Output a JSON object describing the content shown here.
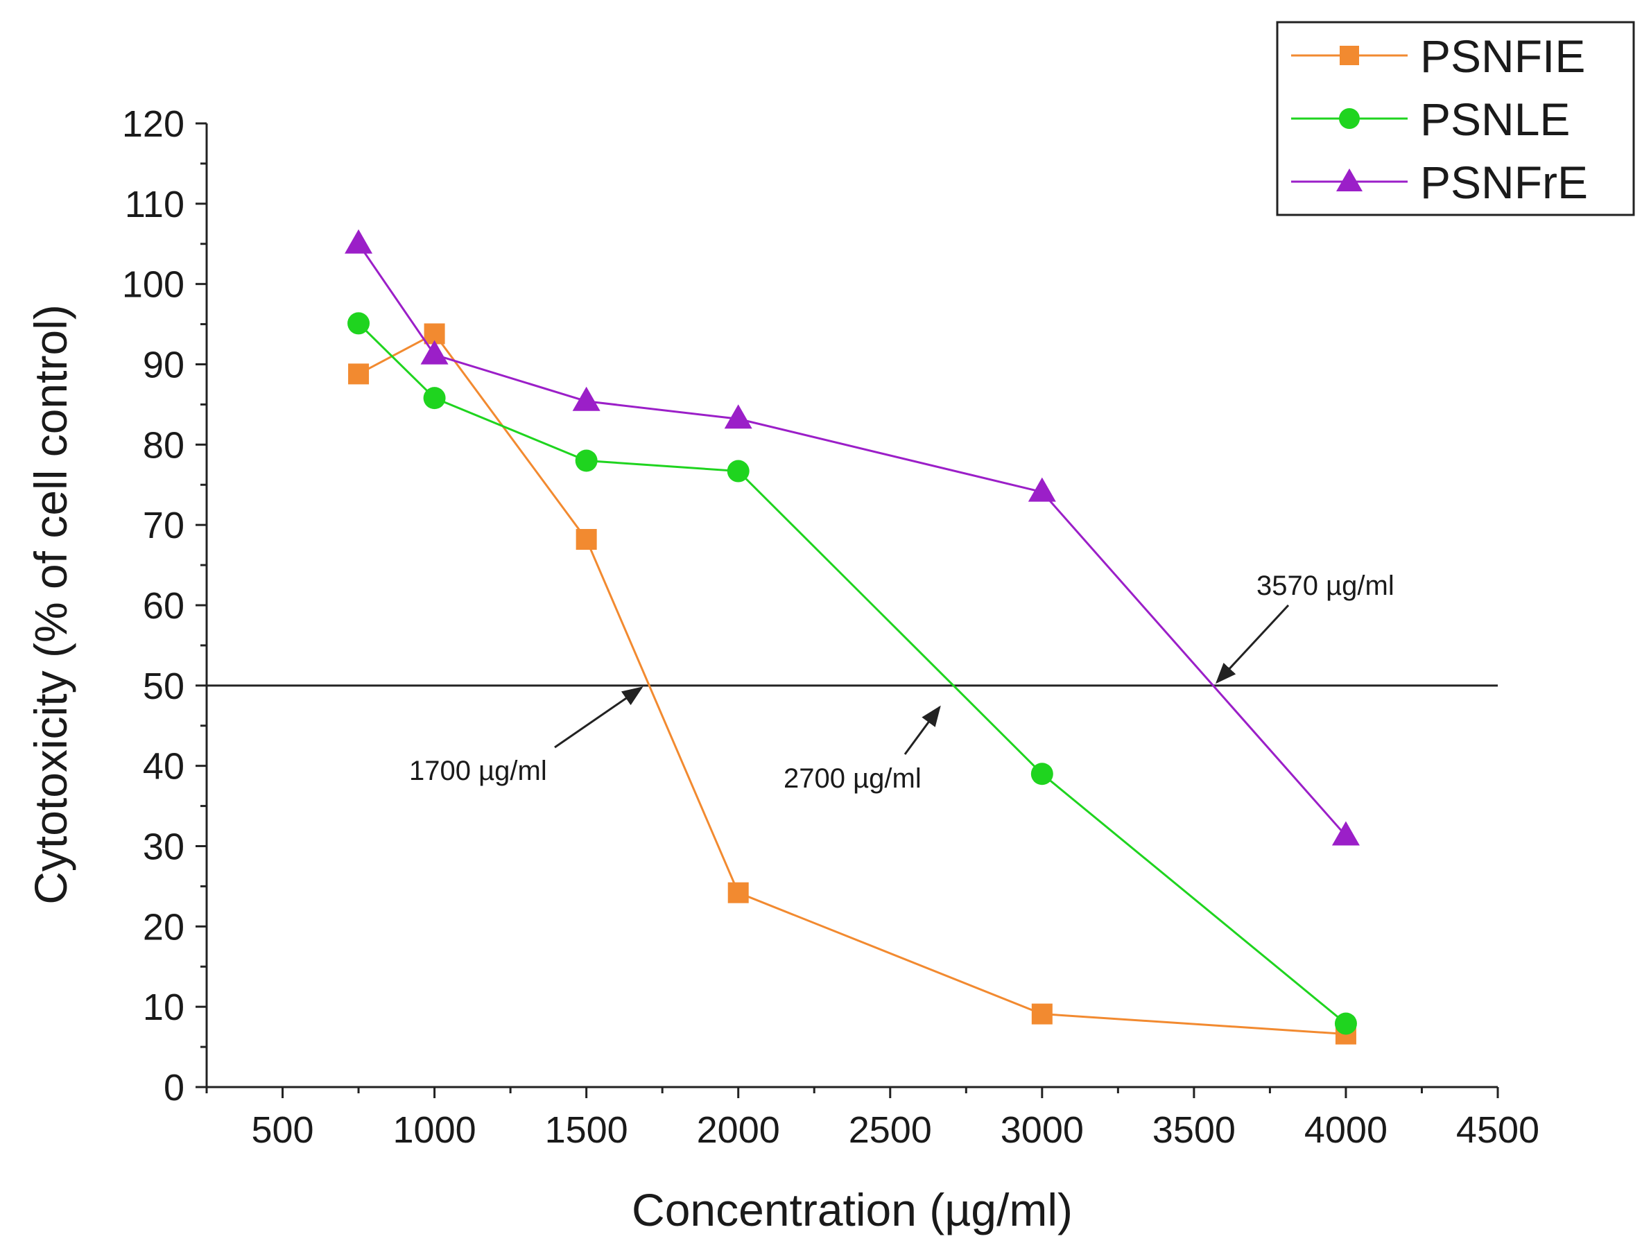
{
  "chart_data": {
    "type": "line",
    "title": "",
    "xlabel": "Concentration (µg/ml)",
    "ylabel": "Cytotoxicity  (% of cell control)",
    "xlim": [
      250,
      4500
    ],
    "ylim": [
      0,
      120
    ],
    "x_ticks": [
      500,
      1000,
      1500,
      2000,
      2500,
      3000,
      3500,
      4000,
      4500
    ],
    "x_minor_ticks": [
      250,
      750,
      1250,
      1750,
      2250,
      2750,
      3250,
      3750,
      4250
    ],
    "y_ticks": [
      0,
      10,
      20,
      30,
      40,
      50,
      60,
      70,
      80,
      90,
      100,
      110,
      120
    ],
    "y_minor_ticks": [
      5,
      15,
      25,
      35,
      45,
      55,
      65,
      75,
      85,
      95,
      105,
      115
    ],
    "grid": false,
    "legend_position": "top-right",
    "reference_line": {
      "y": 50
    },
    "series": [
      {
        "name": "PSNFIE",
        "color": "#f28a30",
        "marker": "square",
        "x": [
          750,
          1000,
          1500,
          2000,
          3000,
          4000
        ],
        "values": [
          88.8,
          93.8,
          68.2,
          24.2,
          9.1,
          6.6
        ]
      },
      {
        "name": "PSNLE",
        "color": "#1fd41f",
        "marker": "circle",
        "x": [
          750,
          1000,
          1500,
          2000,
          3000,
          4000
        ],
        "values": [
          95.1,
          85.8,
          78.0,
          76.7,
          39.0,
          7.9
        ]
      },
      {
        "name": "PSNFrE",
        "color": "#9b1fc8",
        "marker": "triangle",
        "x": [
          750,
          1000,
          1500,
          2000,
          3000,
          4000
        ],
        "values": [
          105.0,
          91.2,
          85.4,
          83.2,
          74.1,
          31.3
        ]
      }
    ],
    "annotations": [
      {
        "text": "1700 µg/ml",
        "x": 1700,
        "y": 50
      },
      {
        "text": "2700 µg/ml",
        "x": 2700,
        "y": 50
      },
      {
        "text": "3570 µg/ml",
        "x": 3570,
        "y": 50
      }
    ]
  }
}
